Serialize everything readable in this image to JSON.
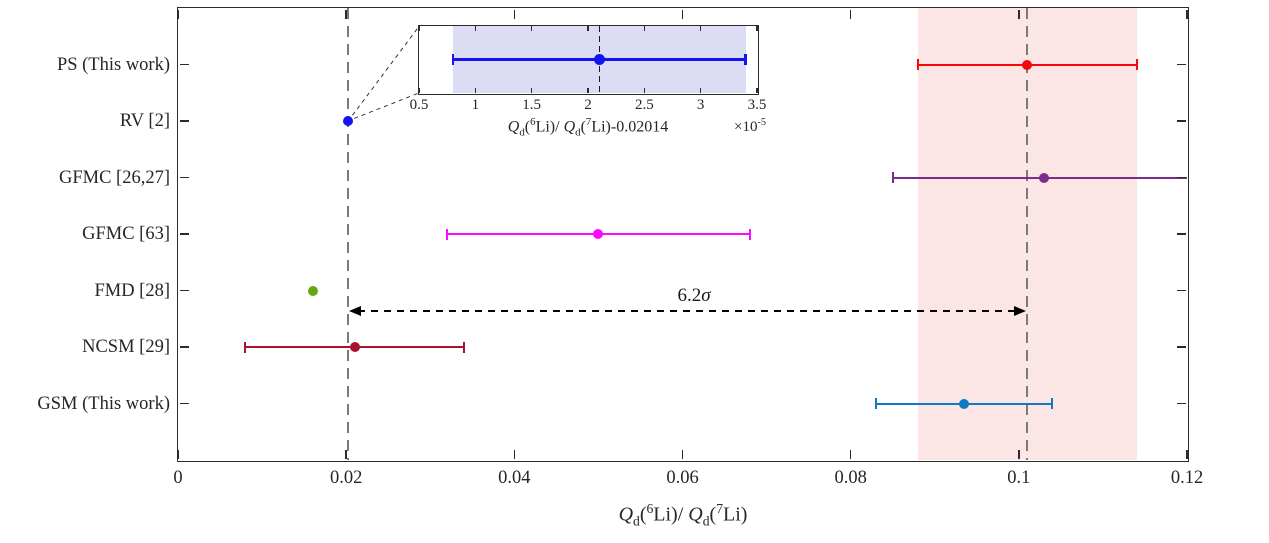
{
  "figure": {
    "background": "#ffffff",
    "axis_color": "#2b2b2b",
    "text_color": "#262626"
  },
  "chart_data": {
    "type": "scatter",
    "subtype": "horizontal-errorbar-comparison",
    "title": "",
    "xlabel": "*Q*_{d}(^{6}Li)/ *Q*_{d}(^{7}Li)",
    "ylabel": "",
    "xlim": [
      0,
      0.12
    ],
    "grid": false,
    "xticks": [
      0,
      0.02,
      0.04,
      0.06,
      0.08,
      0.1,
      0.12
    ],
    "xtick_labels": [
      "0",
      "0.02",
      "0.04",
      "0.06",
      "0.08",
      "0.1",
      "0.12"
    ],
    "categories": [
      "PS (This work)",
      "RV [2]",
      "GFMC [26,27]",
      "GFMC [63]",
      "FMD [28]",
      "NCSM [29]",
      "GSM (This work)"
    ],
    "series": [
      {
        "category": "PS (This work)",
        "value": 0.101,
        "err_lo": 0.088,
        "err_hi": 0.114,
        "color": "#f40a0a"
      },
      {
        "category": "RV [2]",
        "value": 0.0202,
        "err_lo": null,
        "err_hi": null,
        "color": "#1414f0"
      },
      {
        "category": "GFMC [26,27]",
        "value": 0.103,
        "err_lo": 0.085,
        "err_hi": 0.12,
        "err_hi_clipped": true,
        "color": "#7b2d8e"
      },
      {
        "category": "GFMC [63]",
        "value": 0.05,
        "err_lo": 0.032,
        "err_hi": 0.068,
        "color": "#fb0afb"
      },
      {
        "category": "FMD [28]",
        "value": 0.016,
        "err_lo": null,
        "err_hi": null,
        "color": "#61a813"
      },
      {
        "category": "NCSM [29]",
        "value": 0.021,
        "err_lo": 0.008,
        "err_hi": 0.034,
        "color": "#a8122d"
      },
      {
        "category": "GSM (This work)",
        "value": 0.0935,
        "err_lo": 0.083,
        "err_hi": 0.104,
        "color": "#0e7ac4"
      }
    ],
    "shaded_band": {
      "from": 0.088,
      "to": 0.114,
      "color": "#fce5e5"
    },
    "dashed_reference_lines": [
      {
        "x": 0.0202,
        "color": "#7a7a7a"
      },
      {
        "x": 0.101,
        "color": "#7a7a7a"
      }
    ],
    "sigma_annotation": {
      "label": "6.2*σ*",
      "from": 0.0202,
      "to": 0.101
    },
    "inset": {
      "source_category": "RV [2]",
      "xlim": [
        0.5,
        3.5
      ],
      "xticks": [
        0.5,
        1,
        1.5,
        2,
        2.5,
        3,
        3.5
      ],
      "xtick_labels": [
        "0.5",
        "1",
        "1.5",
        "2",
        "2.5",
        "3",
        "3.5"
      ],
      "xlabel": "*Q*_{d}(^{6}Li)/ *Q*_{d}(^{7}Li)-0.02014",
      "scale_label": "×10^{-5}",
      "band": {
        "from": 0.8,
        "to": 3.4,
        "color": "#dcdcf4"
      },
      "point": {
        "value": 2.1,
        "err_lo": 0.8,
        "err_hi": 3.4,
        "color": "#1414f0"
      },
      "dashed_line_x": 2.1
    }
  }
}
